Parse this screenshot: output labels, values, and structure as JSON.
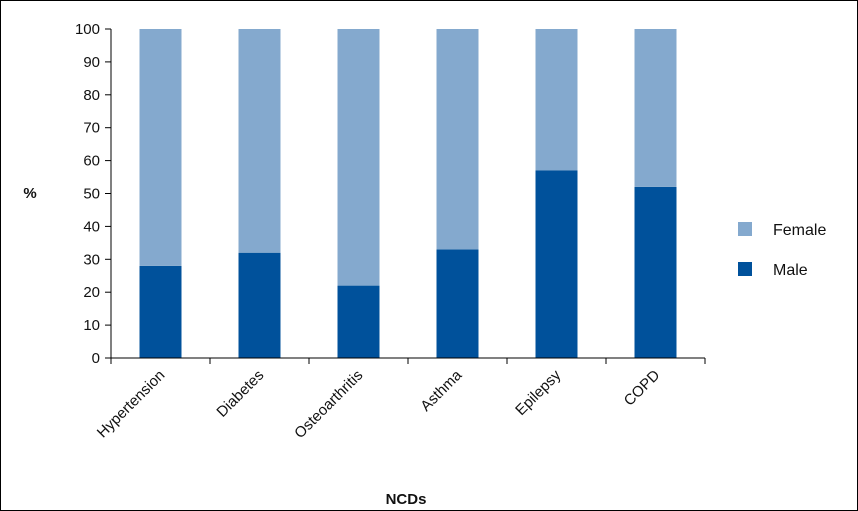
{
  "chart_data": {
    "type": "bar",
    "stacked": true,
    "categories": [
      "Hypertension",
      "Diabetes",
      "Osteoarthritis",
      "Asthma",
      "Epilepsy",
      "COPD"
    ],
    "series": [
      {
        "name": "Male",
        "values": [
          28,
          32,
          22,
          33,
          57,
          52
        ],
        "color": "#00519B"
      },
      {
        "name": "Female",
        "values": [
          72,
          68,
          78,
          67,
          43,
          48
        ],
        "color": "#84A9CE"
      }
    ],
    "title": "",
    "xlabel": "NCDs",
    "ylabel": "%",
    "ylim": [
      0,
      100
    ],
    "yticks": [
      "0",
      "10",
      "20",
      "30",
      "40",
      "50",
      "60",
      "70",
      "80",
      "90",
      "100"
    ],
    "grid": false,
    "legend": {
      "position": "right",
      "items": [
        "Female",
        "Male"
      ]
    },
    "frame_color": "#000000"
  }
}
